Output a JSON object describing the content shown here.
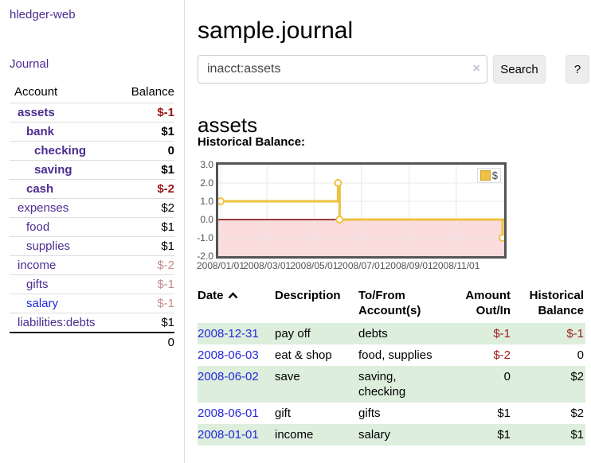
{
  "app": {
    "title": "hledger-web"
  },
  "sidebar": {
    "nav": {
      "journal": "Journal"
    },
    "accounts_table": {
      "headers": {
        "account": "Account",
        "balance": "Balance"
      },
      "rows": [
        {
          "name": "assets",
          "balance": "$-1",
          "level": 1,
          "bold": true,
          "balance_style": "neg-strong"
        },
        {
          "name": "bank",
          "balance": "$1",
          "level": 2,
          "bold": true,
          "balance_style": "pos"
        },
        {
          "name": "checking",
          "balance": "0",
          "level": 3,
          "bold": true,
          "balance_style": "pos"
        },
        {
          "name": "saving",
          "balance": "$1",
          "level": 3,
          "bold": true,
          "balance_style": "pos"
        },
        {
          "name": "cash",
          "balance": "$-2",
          "level": 2,
          "bold": true,
          "balance_style": "neg-strong"
        },
        {
          "name": "expenses",
          "balance": "$2",
          "level": 1,
          "bold": false,
          "balance_style": "pos"
        },
        {
          "name": "food",
          "balance": "$1",
          "level": 2,
          "bold": false,
          "balance_style": "pos"
        },
        {
          "name": "supplies",
          "balance": "$1",
          "level": 2,
          "bold": false,
          "balance_style": "pos"
        },
        {
          "name": "income",
          "balance": "$-2",
          "level": 1,
          "bold": false,
          "balance_style": "neg-muted"
        },
        {
          "name": "gifts",
          "balance": "$-1",
          "level": 2,
          "bold": false,
          "balance_style": "neg-muted"
        },
        {
          "name": "salary",
          "balance": "$-1",
          "level": 2,
          "bold": false,
          "balance_style": "neg-muted",
          "link_style": "blue"
        },
        {
          "name": "liabilities:debts",
          "balance": "$1",
          "level": 1,
          "bold": false,
          "balance_style": "pos"
        }
      ],
      "total": "0"
    }
  },
  "main": {
    "title": "sample.journal",
    "search": {
      "value": "inacct:assets",
      "clear_icon": "×",
      "search_button": "Search",
      "help_button": "?"
    },
    "section_heading": "assets",
    "chart_label": "Historical Balance:"
  },
  "chart_data": {
    "type": "line",
    "title": "Historical Balance",
    "step": true,
    "series": [
      {
        "name": "$",
        "color": "#edc240",
        "points": [
          [
            "2008-01-01",
            1
          ],
          [
            "2008-06-01",
            2
          ],
          [
            "2008-06-03",
            0
          ],
          [
            "2008-12-31",
            -1
          ]
        ]
      }
    ],
    "xlim": [
      "2008-01-01",
      "2008-12-31"
    ],
    "ylim": [
      -2,
      3
    ],
    "y_ticks": [
      3.0,
      2.0,
      1.0,
      0.0,
      -1.0,
      -2.0
    ],
    "x_ticks": [
      {
        "date": "2008-01-01",
        "label": "2008/01/01"
      },
      {
        "date": "2008-03-01",
        "label": "2008/03/01"
      },
      {
        "date": "2008-05-01",
        "label": "2008/05/01"
      },
      {
        "date": "2008-07-01",
        "label": "2008/07/01"
      },
      {
        "date": "2008-09-01",
        "label": "2008/09/01"
      },
      {
        "date": "2008-11-01",
        "label": "2008/11/01"
      }
    ],
    "legend": {
      "label": "$",
      "position": "top-right"
    },
    "grid": true,
    "zero_line_color": "#7b0000",
    "negative_region_color": "#fbdcdc",
    "gridline_color": "#e8e8e8",
    "axis_text_color": "#545454",
    "border_color": "#545454"
  },
  "register": {
    "headers": [
      "Date",
      "Description",
      "To/From Account(s)",
      "Amount Out/In",
      "Historical Balance"
    ],
    "sort_icon": "chevron-up",
    "rows": [
      {
        "date": "2008-12-31",
        "description": "pay off",
        "accounts": "debts",
        "amount": "$-1",
        "amount_neg": true,
        "balance": "$-1",
        "balance_neg": true
      },
      {
        "date": "2008-06-03",
        "description": "eat & shop",
        "accounts": "food, supplies",
        "amount": "$-2",
        "amount_neg": true,
        "balance": "0",
        "balance_neg": false
      },
      {
        "date": "2008-06-02",
        "description": "save",
        "accounts": "saving, checking",
        "amount": "0",
        "amount_neg": false,
        "balance": "$2",
        "balance_neg": false
      },
      {
        "date": "2008-06-01",
        "description": "gift",
        "accounts": "gifts",
        "amount": "$1",
        "amount_neg": false,
        "balance": "$2",
        "balance_neg": false
      },
      {
        "date": "2008-01-01",
        "description": "income",
        "accounts": "salary",
        "amount": "$1",
        "amount_neg": false,
        "balance": "$1",
        "balance_neg": false
      }
    ]
  }
}
